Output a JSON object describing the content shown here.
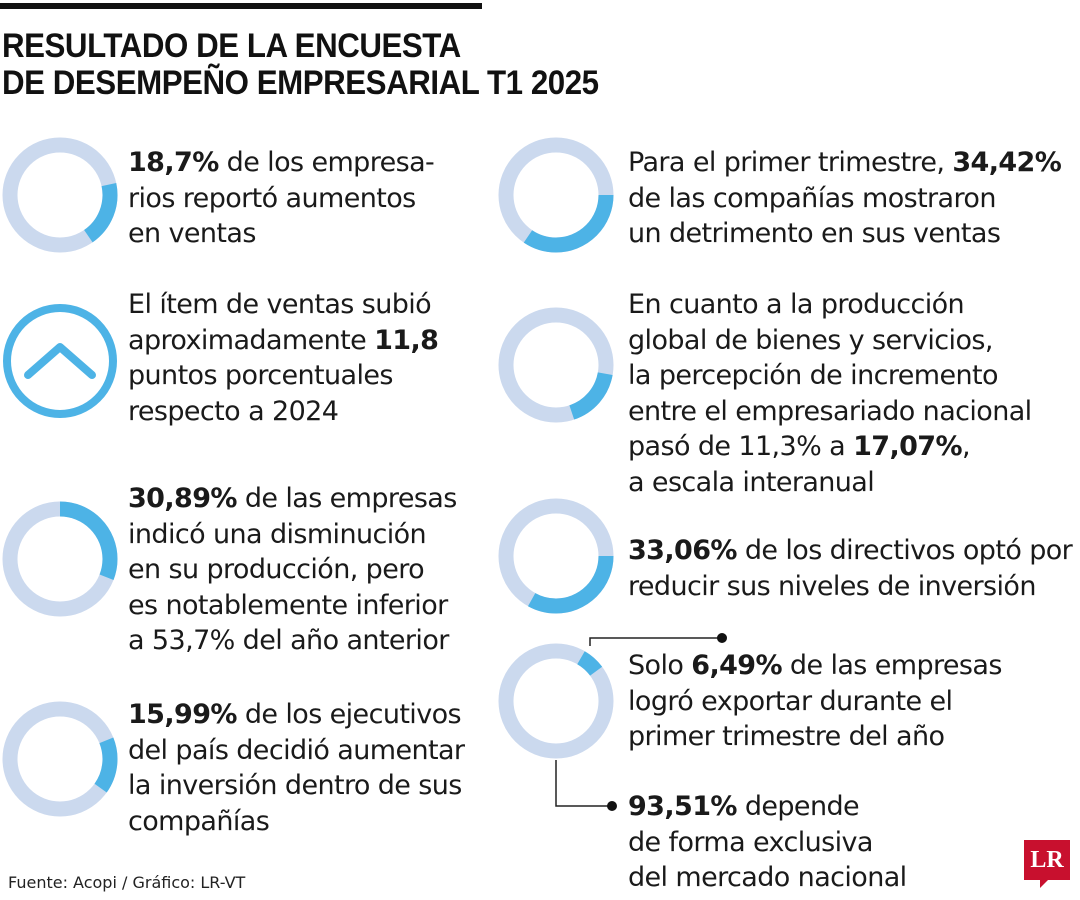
{
  "title": [
    "RESULTADO DE LA ENCUESTA",
    "DE DESEMPEÑO EMPRESARIAL T1 2025"
  ],
  "colors": {
    "accent": "#4db3e6",
    "track": "#cbd9ee",
    "text": "#1a1a1a",
    "brand": "#c8102e"
  },
  "items": [
    {
      "icon": "donut",
      "lines": [
        [
          {
            "t": "18,7%",
            "b": true
          },
          {
            "t": " de los empresa-"
          }
        ],
        [
          {
            "t": "rios reportó aumentos"
          }
        ],
        [
          {
            "t": "en ventas"
          }
        ]
      ]
    },
    {
      "icon": "chevron-up-circle",
      "lines": [
        [
          {
            "t": "El ítem de ventas subió"
          }
        ],
        [
          {
            "t": "aproximadamente "
          },
          {
            "t": "11,8",
            "b": true
          }
        ],
        [
          {
            "t": "puntos porcentuales"
          }
        ],
        [
          {
            "t": "respecto a 2024"
          }
        ]
      ]
    },
    {
      "icon": "donut",
      "lines": [
        [
          {
            "t": "30,89%",
            "b": true
          },
          {
            "t": " de las empresas"
          }
        ],
        [
          {
            "t": "indicó una disminución"
          }
        ],
        [
          {
            "t": "en su producción, pero"
          }
        ],
        [
          {
            "t": "es notablemente inferior"
          }
        ],
        [
          {
            "t": "a 53,7% del año anterior"
          }
        ]
      ]
    },
    {
      "icon": "donut",
      "lines": [
        [
          {
            "t": "15,99%",
            "b": true
          },
          {
            "t": " de los ejecutivos"
          }
        ],
        [
          {
            "t": "del país decidió aumentar"
          }
        ],
        [
          {
            "t": "la inversión dentro de sus"
          }
        ],
        [
          {
            "t": "compañías"
          }
        ]
      ]
    },
    {
      "icon": "donut",
      "lines": [
        [
          {
            "t": "Para el primer trimestre, "
          },
          {
            "t": "34,42%",
            "b": true
          }
        ],
        [
          {
            "t": "de las compañías mostraron"
          }
        ],
        [
          {
            "t": "un detrimento en sus ventas"
          }
        ]
      ]
    },
    {
      "icon": "donut",
      "lines": [
        [
          {
            "t": "En cuanto a la producción"
          }
        ],
        [
          {
            "t": "global de bienes y servicios,"
          }
        ],
        [
          {
            "t": "la percepción de incremento"
          }
        ],
        [
          {
            "t": "entre el empresariado nacional"
          }
        ],
        [
          {
            "t": "pasó de 11,3% a "
          },
          {
            "t": "17,07%",
            "b": true
          },
          {
            "t": ","
          }
        ],
        [
          {
            "t": "a escala interanual"
          }
        ]
      ]
    },
    {
      "icon": "donut",
      "lines": [
        [
          {
            "t": "33,06%",
            "b": true
          },
          {
            "t": " de los directivos optó por"
          }
        ],
        [
          {
            "t": "reducir sus niveles de inversión"
          }
        ]
      ]
    },
    {
      "icon": "donut",
      "lines": [
        [
          {
            "t": "Solo "
          },
          {
            "t": "6,49%",
            "b": true
          },
          {
            "t": " de las empresas"
          }
        ],
        [
          {
            "t": "logró exportar durante el"
          }
        ],
        [
          {
            "t": "primer trimestre del año"
          }
        ]
      ]
    },
    {
      "icon": "none",
      "lines": [
        [
          {
            "t": "93,51%",
            "b": true
          },
          {
            "t": " depende"
          }
        ],
        [
          {
            "t": "de forma exclusiva"
          }
        ],
        [
          {
            "t": "del mercado nacional"
          }
        ]
      ]
    }
  ],
  "chart_data": {
    "type": "pie",
    "variant": "donut",
    "unit": "%",
    "donuts": [
      {
        "value": 18.7,
        "label": "18,7%"
      },
      {
        "value": 30.89,
        "label": "30,89%"
      },
      {
        "value": 15.99,
        "label": "15,99%"
      },
      {
        "value": 34.42,
        "label": "34,42%"
      },
      {
        "value": 17.07,
        "label": "17,07%"
      },
      {
        "value": 33.06,
        "label": "33,06%"
      },
      {
        "value": 6.49,
        "label": "6,49%",
        "complement": {
          "value": 93.51,
          "label": "93,51%"
        }
      }
    ]
  },
  "footer": {
    "source": "Fuente: Acopi / Gráfico: LR-VT",
    "logo": "LR"
  }
}
